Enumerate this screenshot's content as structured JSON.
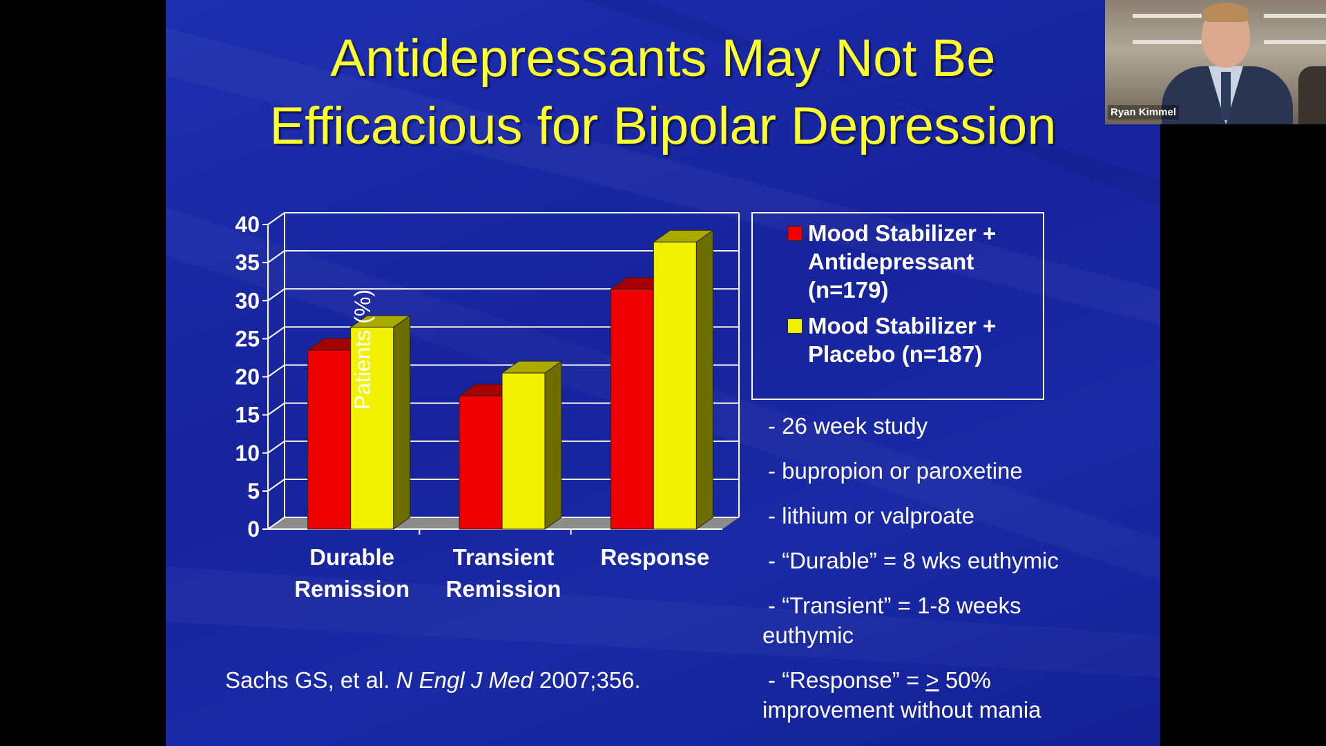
{
  "slide": {
    "title_line1": "Antidepressants May Not Be",
    "title_line2": "Efficacious for Bipolar Depression",
    "legend": {
      "series1": [
        "Mood Stabilizer +",
        "Antidepressant",
        "(n=179)"
      ],
      "series2": [
        "Mood Stabilizer +",
        "Placebo (n=187)"
      ]
    },
    "notes": [
      "- 26 week study",
      "- bupropion or paroxetine",
      "- lithium or valproate",
      "- “Durable” = 8 wks euthymic",
      "- “Transient” = 1-8 weeks",
      "euthymic",
      "- “Response” = ",
      ">",
      " 50%",
      "improvement without mania"
    ],
    "citation": {
      "authors": "Sachs GS, et al. ",
      "journal": "N Engl J Med",
      "ref": " 2007;356."
    }
  },
  "chart_data": {
    "type": "bar",
    "categories": [
      [
        "Durable",
        "Remission"
      ],
      [
        "Transient",
        "Remission"
      ],
      [
        "Response"
      ]
    ],
    "series": [
      {
        "name": "Mood Stabilizer + Antidepressant (n=179)",
        "values": [
          23.5,
          17.5,
          31.5
        ],
        "color": "#ee0000"
      },
      {
        "name": "Mood Stabilizer + Placebo (n=187)",
        "values": [
          26.5,
          20.5,
          37.7
        ],
        "color": "#f2f200"
      }
    ],
    "ylabel": "Patients (%)",
    "ylim": [
      0,
      40
    ],
    "yticks": [
      0,
      5,
      10,
      15,
      20,
      25,
      30,
      35,
      40
    ],
    "grid": true,
    "legend_position": "right"
  },
  "video_tile": {
    "participant_name": "Ryan Kimmel"
  }
}
